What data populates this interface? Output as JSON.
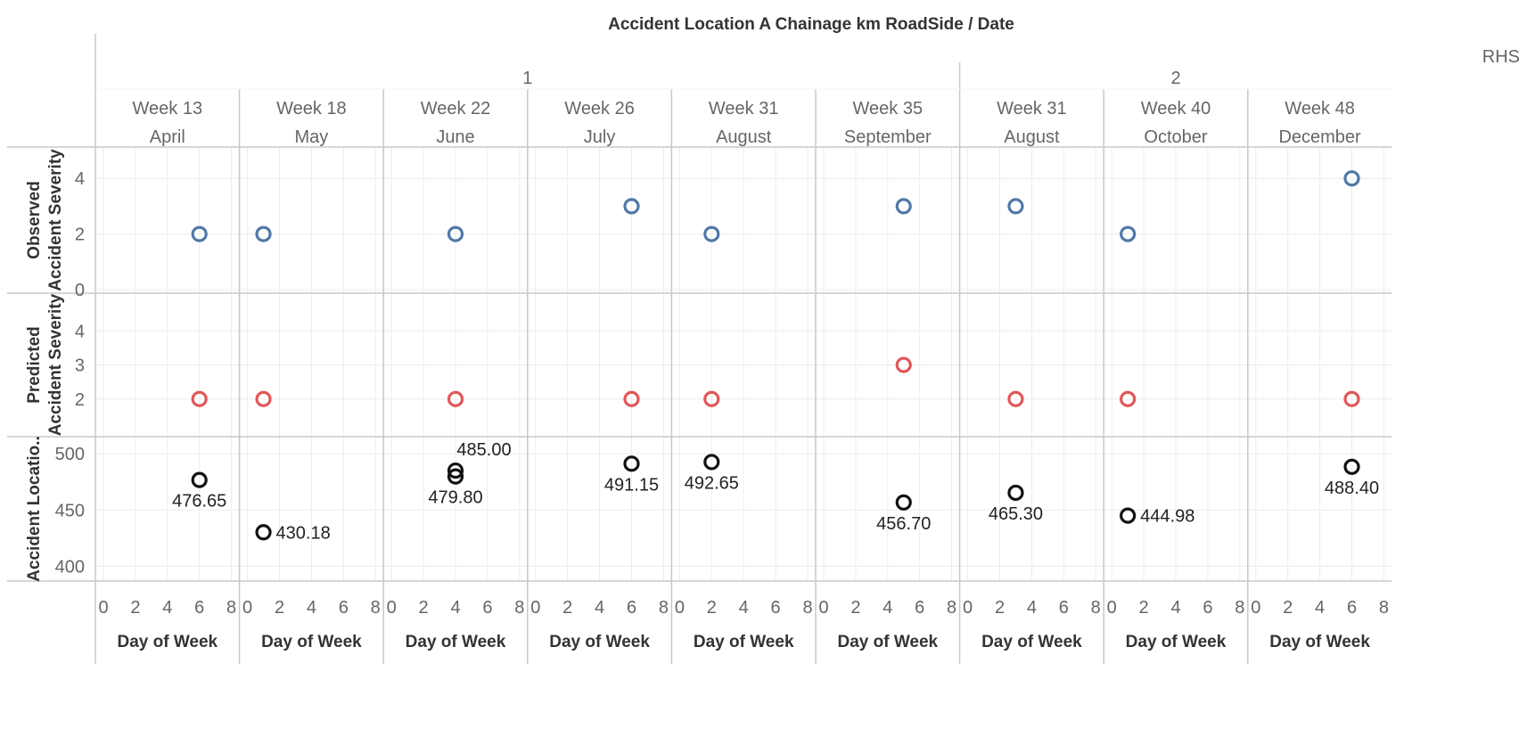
{
  "chart_data": {
    "type": "scatter",
    "title": "Accident Location A Chainage km RoadSide  /  Date",
    "roadside": "RHS",
    "groups": [
      {
        "label": "1",
        "panels": [
          0,
          1,
          2,
          3,
          4,
          5
        ]
      },
      {
        "label": "2",
        "panels": [
          6,
          7,
          8
        ]
      }
    ],
    "panels": [
      {
        "week": "Week 13",
        "month": "April"
      },
      {
        "week": "Week 18",
        "month": "May"
      },
      {
        "week": "Week 22",
        "month": "June"
      },
      {
        "week": "Week 26",
        "month": "July"
      },
      {
        "week": "Week 31",
        "month": "August"
      },
      {
        "week": "Week 35",
        "month": "September"
      },
      {
        "week": "Week 31",
        "month": "August"
      },
      {
        "week": "Week 40",
        "month": "October"
      },
      {
        "week": "Week 48",
        "month": "December"
      }
    ],
    "x_axis": {
      "label": "Day of Week",
      "ticks": [
        0,
        2,
        4,
        6,
        8
      ],
      "range": [
        0,
        8
      ]
    },
    "rows": [
      {
        "label_line1": "Observed",
        "label_line2": "Accident Severity",
        "color": "#4e79a7",
        "range": [
          0,
          5
        ],
        "ticks": [
          0,
          2,
          4
        ],
        "points": [
          {
            "panel": 0,
            "x": 6,
            "y": 2
          },
          {
            "panel": 1,
            "x": 1,
            "y": 2
          },
          {
            "panel": 2,
            "x": 4,
            "y": 2
          },
          {
            "panel": 3,
            "x": 6,
            "y": 3
          },
          {
            "panel": 4,
            "x": 2,
            "y": 2
          },
          {
            "panel": 5,
            "x": 5,
            "y": 3
          },
          {
            "panel": 6,
            "x": 3,
            "y": 3
          },
          {
            "panel": 7,
            "x": 1,
            "y": 2
          },
          {
            "panel": 8,
            "x": 6,
            "y": 4
          }
        ]
      },
      {
        "label_line1": "Predicted",
        "label_line2": "Accident Severity",
        "color": "#e15759",
        "range": [
          1,
          5
        ],
        "ticks": [
          2,
          3,
          4
        ],
        "points": [
          {
            "panel": 0,
            "x": 6,
            "y": 2
          },
          {
            "panel": 1,
            "x": 1,
            "y": 2
          },
          {
            "panel": 2,
            "x": 4,
            "y": 2
          },
          {
            "panel": 3,
            "x": 6,
            "y": 2
          },
          {
            "panel": 4,
            "x": 2,
            "y": 2
          },
          {
            "panel": 5,
            "x": 5,
            "y": 3
          },
          {
            "panel": 6,
            "x": 3,
            "y": 2
          },
          {
            "panel": 7,
            "x": 1,
            "y": 2
          },
          {
            "panel": 8,
            "x": 6,
            "y": 2
          }
        ]
      },
      {
        "label_line1": "Accident Locatio..",
        "label_line2": "",
        "color": "#111111",
        "range": [
          390,
          512
        ],
        "ticks": [
          400,
          450,
          500
        ],
        "points": [
          {
            "panel": 0,
            "x": 6,
            "y": 476.65,
            "label": "476.65",
            "label_pos": "below"
          },
          {
            "panel": 1,
            "x": 1,
            "y": 430.18,
            "label": "430.18",
            "label_pos": "right"
          },
          {
            "panel": 2,
            "x": 4,
            "y": 485.0,
            "label": "485.00",
            "label_pos": "above-right"
          },
          {
            "panel": 2,
            "x": 4,
            "y": 479.8,
            "label": "479.80",
            "label_pos": "below"
          },
          {
            "panel": 3,
            "x": 6,
            "y": 491.15,
            "label": "491.15",
            "label_pos": "below"
          },
          {
            "panel": 4,
            "x": 2,
            "y": 492.65,
            "label": "492.65",
            "label_pos": "below"
          },
          {
            "panel": 5,
            "x": 5,
            "y": 456.7,
            "label": "456.70",
            "label_pos": "below"
          },
          {
            "panel": 6,
            "x": 3,
            "y": 465.3,
            "label": "465.30",
            "label_pos": "below"
          },
          {
            "panel": 7,
            "x": 1,
            "y": 444.98,
            "label": "444.98",
            "label_pos": "right"
          },
          {
            "panel": 8,
            "x": 6,
            "y": 488.4,
            "label": "488.40",
            "label_pos": "below"
          }
        ]
      }
    ]
  }
}
